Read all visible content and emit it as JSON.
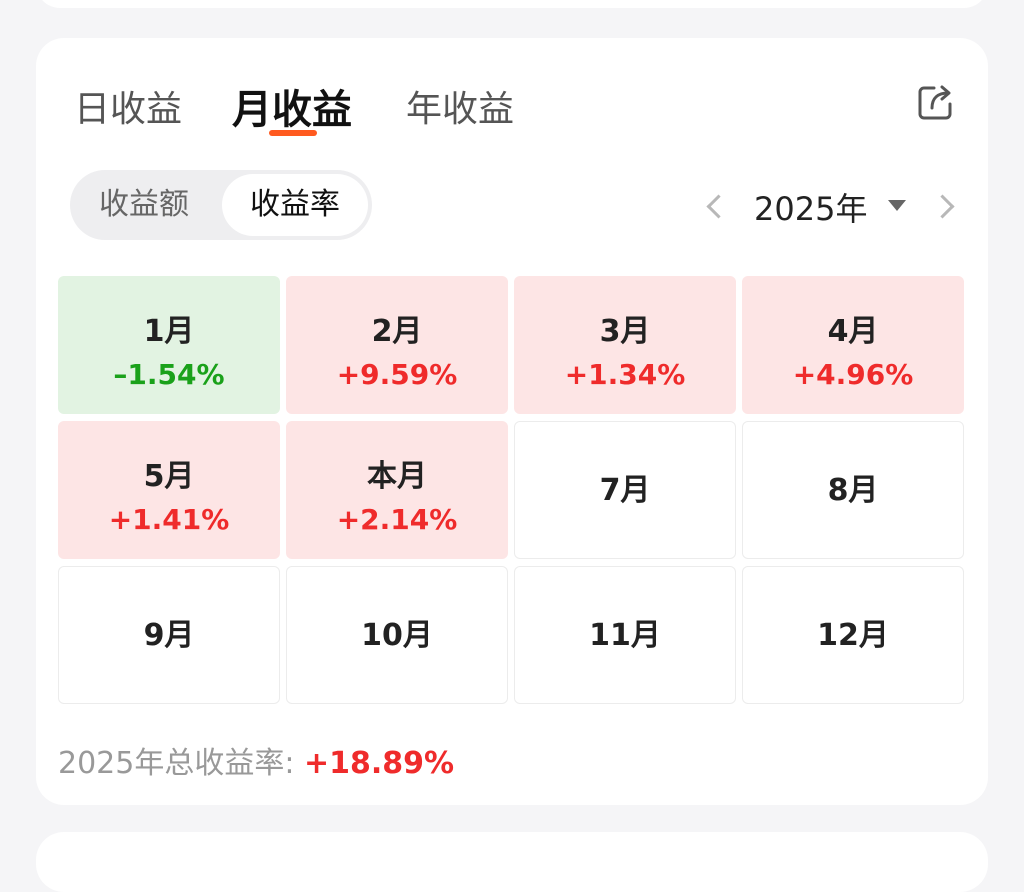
{
  "tabs": [
    "日收益",
    "月收益",
    "年收益"
  ],
  "active_tab": 1,
  "segment": {
    "items": [
      "收益额",
      "收益率"
    ],
    "active": 1
  },
  "year_selector": {
    "label": "2025年"
  },
  "months": [
    {
      "label": "1月",
      "value": "–1.54%",
      "trend": "neg"
    },
    {
      "label": "2月",
      "value": "+9.59%",
      "trend": "pos"
    },
    {
      "label": "3月",
      "value": "+1.34%",
      "trend": "pos"
    },
    {
      "label": "4月",
      "value": "+4.96%",
      "trend": "pos"
    },
    {
      "label": "5月",
      "value": "+1.41%",
      "trend": "pos"
    },
    {
      "label": "本月",
      "value": "+2.14%",
      "trend": "pos"
    },
    {
      "label": "7月",
      "value": "",
      "trend": "none"
    },
    {
      "label": "8月",
      "value": "",
      "trend": "none"
    },
    {
      "label": "9月",
      "value": "",
      "trend": "none"
    },
    {
      "label": "10月",
      "value": "",
      "trend": "none"
    },
    {
      "label": "11月",
      "value": "",
      "trend": "none"
    },
    {
      "label": "12月",
      "value": "",
      "trend": "none"
    }
  ],
  "footer": {
    "label": "2025年总收益率:",
    "total": "+18.89%"
  },
  "colors": {
    "positive": "#ef2b2b",
    "negative": "#1aa11a",
    "accent": "#ff5a1f"
  },
  "icons": {
    "share": "share-export-icon",
    "prev": "chevron-left-icon",
    "next": "chevron-right-icon",
    "dropdown": "caret-down-icon"
  }
}
